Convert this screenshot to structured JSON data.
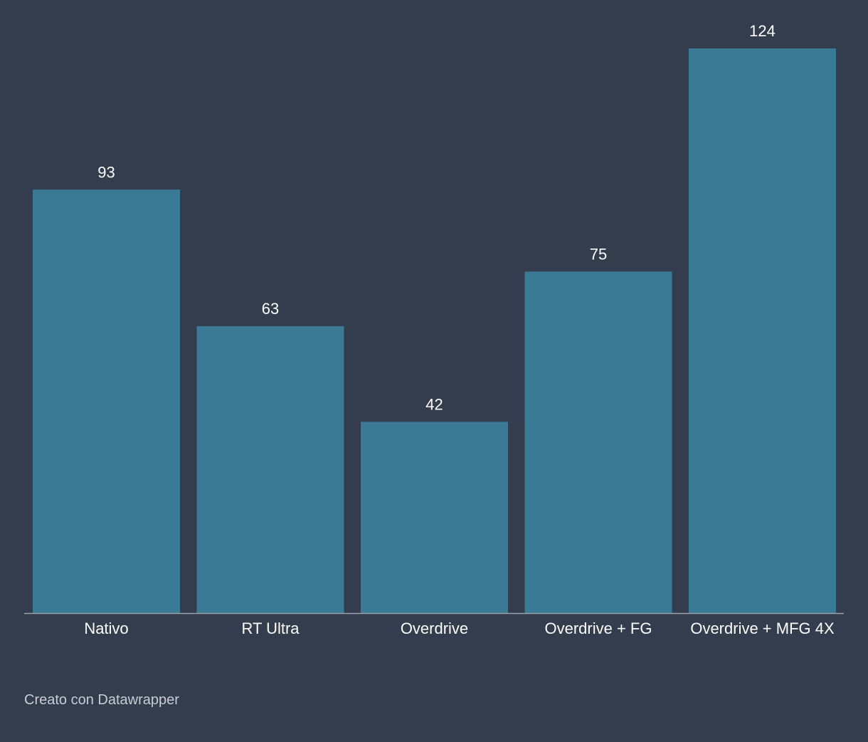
{
  "chart_data": {
    "type": "bar",
    "categories": [
      "Nativo",
      "RT Ultra",
      "Overdrive",
      "Overdrive + FG",
      "Overdrive + MFG 4X"
    ],
    "values": [
      93,
      63,
      42,
      75,
      124
    ],
    "title": "",
    "xlabel": "",
    "ylabel": "",
    "ylim": [
      0,
      124
    ],
    "grid": false,
    "show_value_labels": true,
    "bar_color": "#3a7a95",
    "background_color": "#333d4d",
    "baseline_color": "#9aa1a9"
  },
  "footer": {
    "credit": "Creato con Datawrapper"
  }
}
